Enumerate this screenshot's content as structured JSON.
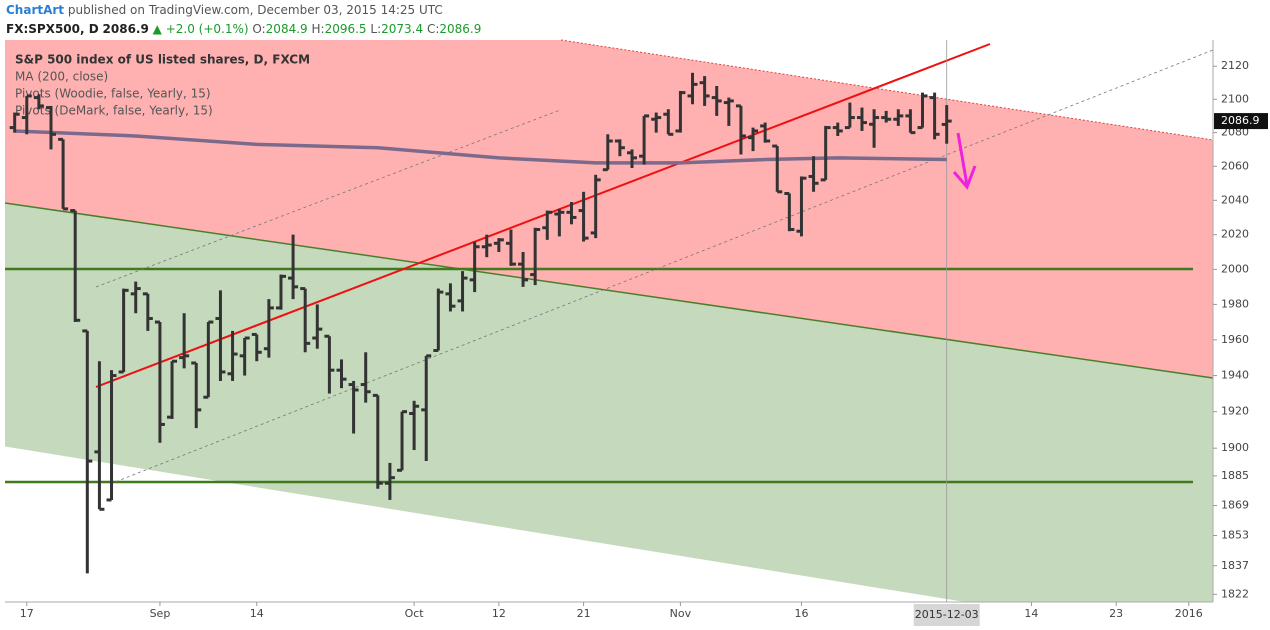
{
  "header": {
    "author": "ChartArt",
    "published": "published on TradingView.com, December 03, 2015 14:25 UTC",
    "symbol": "FX:SPX500, D",
    "change": "▲ +2.0 (+0.1%)",
    "o": "O:",
    "h": "H:",
    "l": "L:",
    "c": "C:"
  },
  "chart_data": {
    "type": "ohlc",
    "legend": [
      "S&P 500 index of US listed shares, D, FXCM",
      "MA (200, close)",
      "Pivots (Woodie, false, Yearly, 15)",
      "Pivots (DeMark, false, Yearly, 15)"
    ],
    "x": [
      0,
      1,
      2,
      3,
      4,
      5,
      6,
      7,
      8,
      9,
      10,
      11,
      12,
      13,
      14,
      15,
      16,
      17,
      18,
      19,
      20,
      21,
      22,
      23,
      24,
      25,
      26,
      27,
      28,
      29,
      30,
      31,
      32,
      33,
      34,
      35,
      36,
      37,
      38,
      39,
      40,
      41,
      42,
      43,
      44,
      45,
      46,
      47,
      48,
      49,
      50,
      51,
      52,
      53,
      54,
      55,
      56,
      57,
      58,
      59,
      60,
      61,
      62,
      63,
      64,
      65,
      66,
      67,
      68,
      69,
      70,
      71,
      72,
      73,
      74,
      75,
      76,
      77
    ],
    "open": [
      2083,
      2089,
      2101,
      2095,
      2076,
      2034,
      1965,
      1898,
      1872,
      1942,
      1986,
      1986,
      1970,
      1917,
      1950,
      1947,
      1928,
      1972,
      1941,
      1951,
      1963,
      1955,
      1978,
      1995,
      1989,
      1961,
      1962,
      1943,
      1935,
      1935,
      1929,
      1881,
      1888,
      1919,
      1921,
      1954,
      1986,
      1982,
      1994,
      2013,
      2015,
      2015,
      2003,
      1997,
      2024,
      2032,
      2033,
      2034,
      2021,
      2058,
      2075,
      2068,
      2066,
      2088,
      2091,
      2081,
      2102,
      2110,
      2101,
      2098,
      2096,
      2077,
      2084,
      2072,
      2044,
      2022,
      2054,
      2052,
      2083,
      2083,
      2089,
      2085,
      2089,
      2088,
      2090,
      2083,
      2101,
      2084.9
    ],
    "high": [
      2092,
      2102,
      2103,
      2096,
      2076,
      2034,
      1965,
      1948,
      1943,
      1989,
      1993,
      1986,
      1970,
      1948,
      1975,
      1947,
      1970,
      1988,
      1965,
      1961,
      1963,
      1983,
      1997,
      2020,
      1989,
      1980,
      1962,
      1949,
      1937,
      1953,
      1929,
      1892,
      1920,
      1926,
      1951,
      1989,
      1992,
      1999,
      2016,
      2020,
      2018,
      2023,
      2010,
      2024,
      2034,
      2035,
      2039,
      2045,
      2055,
      2079,
      2076,
      2070,
      2090,
      2092,
      2094,
      2105,
      2116,
      2114,
      2108,
      2101,
      2096,
      2083,
      2086,
      2072,
      2044,
      2054,
      2066,
      2084,
      2086,
      2098,
      2095,
      2094,
      2093,
      2094,
      2094,
      2104,
      2104,
      2096.5
    ],
    "low": [
      2080,
      2079,
      2094,
      2070,
      2035,
      1970,
      1833,
      1867,
      1872,
      1942,
      1975,
      1965,
      1903,
      1916,
      1944,
      1911,
      1928,
      1937,
      1937,
      1940,
      1948,
      1950,
      1977,
      1983,
      1953,
      1955,
      1930,
      1933,
      1908,
      1925,
      1878,
      1872,
      1888,
      1899,
      1893,
      1954,
      1976,
      1976,
      1987,
      2007,
      2010,
      2002,
      1990,
      1991,
      2017,
      2019,
      2026,
      2016,
      2018,
      2058,
      2066,
      2059,
      2061,
      2080,
      2079,
      2080,
      2097,
      2096,
      2090,
      2084,
      2067,
      2069,
      2074,
      2045,
      2022,
      2019,
      2045,
      2052,
      2078,
      2083,
      2081,
      2071,
      2086,
      2084,
      2080,
      2083,
      2076,
      2073.4
    ],
    "close": [
      2091,
      2102,
      2096,
      2079,
      2035,
      1971,
      1893,
      1867,
      1940,
      1988,
      1989,
      1972,
      1913,
      1948,
      1951,
      1921,
      1970,
      1942,
      1952,
      1961,
      1953,
      1978,
      1996,
      1990,
      1958,
      1966,
      1943,
      1938,
      1932,
      1931,
      1881,
      1884,
      1920,
      1923,
      1951,
      1987,
      1979,
      1995,
      2013,
      2014,
      2017,
      2003,
      1994,
      2023,
      2033,
      2033,
      2030,
      2018,
      2052,
      2075,
      2071,
      2065,
      2090,
      2089,
      2079,
      2104,
      2109,
      2102,
      2099,
      2099,
      2078,
      2081,
      2075,
      2045,
      2023,
      2053,
      2050,
      2083,
      2081,
      2089,
      2086,
      2089,
      2088,
      2090,
      2080,
      2102,
      2079,
      2086.9
    ],
    "color": "#333333",
    "ma": {
      "x": [
        0,
        10,
        20,
        30,
        40,
        48,
        55,
        62,
        68,
        77
      ],
      "values": [
        2081,
        2078,
        2073,
        2071,
        2065,
        2062,
        2062,
        2064,
        2065,
        2064
      ],
      "color": "#7b6a8c"
    },
    "log_scale": true,
    "xlim": [
      -0.8,
      99
    ],
    "ylim": [
      1818,
      2136
    ],
    "xticks": [
      {
        "value": 1,
        "label": "17"
      },
      {
        "value": 12,
        "label": "Sep"
      },
      {
        "value": 20,
        "label": "14"
      },
      {
        "value": 33,
        "label": "Oct"
      },
      {
        "value": 40,
        "label": "12"
      },
      {
        "value": 47,
        "label": "21"
      },
      {
        "value": 55,
        "label": "Nov"
      },
      {
        "value": 65,
        "label": "16"
      },
      {
        "value": 84,
        "label": "14"
      },
      {
        "value": 91,
        "label": "23"
      },
      {
        "value": 97,
        "label": "2016"
      }
    ],
    "yticks": [
      2120,
      2100,
      2080,
      2060,
      2040,
      2020,
      2000,
      1980,
      1960,
      1940,
      1920,
      1900,
      1885,
      1869,
      1853,
      1837,
      1822
    ],
    "cursor": {
      "value": 77,
      "label": "2015-12-03"
    }
  }
}
